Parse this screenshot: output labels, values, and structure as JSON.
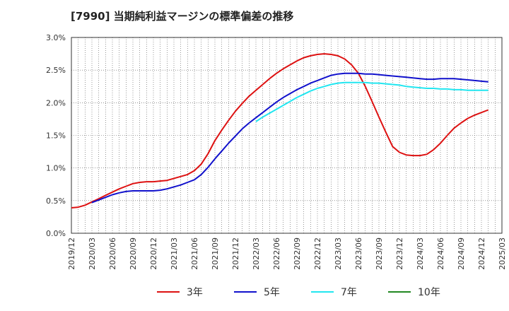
{
  "title": "[7990]  当期純利益マージンの標準偏差の推移",
  "chart_data": {
    "type": "line",
    "title": "[7990]  当期純利益マージンの標準偏差の推移",
    "xlabel": "",
    "ylabel": "",
    "ylim": [
      0,
      3.0
    ],
    "y_unit": "%",
    "y_ticks": [
      "0.0%",
      "0.5%",
      "1.0%",
      "1.5%",
      "2.0%",
      "2.5%",
      "3.0%"
    ],
    "x_ticks": [
      "2019/12",
      "2020/03",
      "2020/06",
      "2020/09",
      "2020/12",
      "2021/03",
      "2021/06",
      "2021/09",
      "2021/12",
      "2022/03",
      "2022/06",
      "2022/09",
      "2022/12",
      "2023/03",
      "2023/06",
      "2023/09",
      "2023/12",
      "2024/03",
      "2024/06",
      "2024/09",
      "2024/12",
      "2025/03"
    ],
    "grid": true,
    "legend_position": "bottom",
    "series": [
      {
        "name": "3年",
        "color": "#dd1111",
        "points": [
          [
            "2019/12",
            0.39
          ],
          [
            "2020/01",
            0.4
          ],
          [
            "2020/02",
            0.43
          ],
          [
            "2020/03",
            0.48
          ],
          [
            "2020/04",
            0.53
          ],
          [
            "2020/05",
            0.58
          ],
          [
            "2020/06",
            0.63
          ],
          [
            "2020/07",
            0.68
          ],
          [
            "2020/08",
            0.72
          ],
          [
            "2020/09",
            0.76
          ],
          [
            "2020/10",
            0.78
          ],
          [
            "2020/11",
            0.79
          ],
          [
            "2020/12",
            0.79
          ],
          [
            "2021/01",
            0.8
          ],
          [
            "2021/02",
            0.81
          ],
          [
            "2021/03",
            0.84
          ],
          [
            "2021/04",
            0.87
          ],
          [
            "2021/05",
            0.9
          ],
          [
            "2021/06",
            0.96
          ],
          [
            "2021/07",
            1.06
          ],
          [
            "2021/08",
            1.22
          ],
          [
            "2021/09",
            1.42
          ],
          [
            "2021/10",
            1.58
          ],
          [
            "2021/11",
            1.73
          ],
          [
            "2021/12",
            1.87
          ],
          [
            "2022/01",
            1.99
          ],
          [
            "2022/02",
            2.1
          ],
          [
            "2022/03",
            2.19
          ],
          [
            "2022/04",
            2.28
          ],
          [
            "2022/05",
            2.37
          ],
          [
            "2022/06",
            2.45
          ],
          [
            "2022/07",
            2.52
          ],
          [
            "2022/08",
            2.58
          ],
          [
            "2022/09",
            2.64
          ],
          [
            "2022/10",
            2.69
          ],
          [
            "2022/11",
            2.72
          ],
          [
            "2022/12",
            2.74
          ],
          [
            "2023/01",
            2.75
          ],
          [
            "2023/02",
            2.74
          ],
          [
            "2023/03",
            2.72
          ],
          [
            "2023/04",
            2.67
          ],
          [
            "2023/05",
            2.58
          ],
          [
            "2023/06",
            2.45
          ],
          [
            "2023/07",
            2.25
          ],
          [
            "2023/08",
            2.02
          ],
          [
            "2023/09",
            1.78
          ],
          [
            "2023/10",
            1.55
          ],
          [
            "2023/11",
            1.33
          ],
          [
            "2023/12",
            1.24
          ],
          [
            "2024/01",
            1.2
          ],
          [
            "2024/02",
            1.19
          ],
          [
            "2024/03",
            1.19
          ],
          [
            "2024/04",
            1.21
          ],
          [
            "2024/05",
            1.28
          ],
          [
            "2024/06",
            1.38
          ],
          [
            "2024/07",
            1.5
          ],
          [
            "2024/08",
            1.61
          ],
          [
            "2024/09",
            1.69
          ],
          [
            "2024/10",
            1.76
          ],
          [
            "2024/11",
            1.81
          ],
          [
            "2024/12",
            1.85
          ],
          [
            "2025/01",
            1.89
          ]
        ]
      },
      {
        "name": "5年",
        "color": "#1111cc",
        "points": [
          [
            "2020/03",
            0.47
          ],
          [
            "2020/04",
            0.51
          ],
          [
            "2020/05",
            0.55
          ],
          [
            "2020/06",
            0.59
          ],
          [
            "2020/07",
            0.62
          ],
          [
            "2020/08",
            0.64
          ],
          [
            "2020/09",
            0.65
          ],
          [
            "2020/10",
            0.65
          ],
          [
            "2020/11",
            0.65
          ],
          [
            "2020/12",
            0.65
          ],
          [
            "2021/01",
            0.66
          ],
          [
            "2021/02",
            0.68
          ],
          [
            "2021/03",
            0.71
          ],
          [
            "2021/04",
            0.74
          ],
          [
            "2021/05",
            0.78
          ],
          [
            "2021/06",
            0.82
          ],
          [
            "2021/07",
            0.9
          ],
          [
            "2021/08",
            1.01
          ],
          [
            "2021/09",
            1.14
          ],
          [
            "2021/10",
            1.26
          ],
          [
            "2021/11",
            1.38
          ],
          [
            "2021/12",
            1.49
          ],
          [
            "2022/01",
            1.6
          ],
          [
            "2022/02",
            1.69
          ],
          [
            "2022/03",
            1.77
          ],
          [
            "2022/04",
            1.85
          ],
          [
            "2022/05",
            1.93
          ],
          [
            "2022/06",
            2.01
          ],
          [
            "2022/07",
            2.08
          ],
          [
            "2022/08",
            2.14
          ],
          [
            "2022/09",
            2.2
          ],
          [
            "2022/10",
            2.25
          ],
          [
            "2022/11",
            2.3
          ],
          [
            "2022/12",
            2.34
          ],
          [
            "2023/01",
            2.38
          ],
          [
            "2023/02",
            2.42
          ],
          [
            "2023/03",
            2.44
          ],
          [
            "2023/04",
            2.45
          ],
          [
            "2023/05",
            2.45
          ],
          [
            "2023/06",
            2.45
          ],
          [
            "2023/07",
            2.44
          ],
          [
            "2023/08",
            2.44
          ],
          [
            "2023/09",
            2.43
          ],
          [
            "2023/10",
            2.42
          ],
          [
            "2023/11",
            2.41
          ],
          [
            "2023/12",
            2.4
          ],
          [
            "2024/01",
            2.39
          ],
          [
            "2024/02",
            2.38
          ],
          [
            "2024/03",
            2.37
          ],
          [
            "2024/04",
            2.36
          ],
          [
            "2024/05",
            2.36
          ],
          [
            "2024/06",
            2.37
          ],
          [
            "2024/07",
            2.37
          ],
          [
            "2024/08",
            2.37
          ],
          [
            "2024/09",
            2.36
          ],
          [
            "2024/10",
            2.35
          ],
          [
            "2024/11",
            2.34
          ],
          [
            "2024/12",
            2.33
          ],
          [
            "2025/01",
            2.32
          ]
        ]
      },
      {
        "name": "7年",
        "color": "#22e6f0",
        "points": [
          [
            "2022/03",
            1.71
          ],
          [
            "2022/04",
            1.78
          ],
          [
            "2022/05",
            1.84
          ],
          [
            "2022/06",
            1.9
          ],
          [
            "2022/07",
            1.96
          ],
          [
            "2022/08",
            2.02
          ],
          [
            "2022/09",
            2.08
          ],
          [
            "2022/10",
            2.13
          ],
          [
            "2022/11",
            2.18
          ],
          [
            "2022/12",
            2.22
          ],
          [
            "2023/01",
            2.25
          ],
          [
            "2023/02",
            2.28
          ],
          [
            "2023/03",
            2.3
          ],
          [
            "2023/04",
            2.31
          ],
          [
            "2023/05",
            2.31
          ],
          [
            "2023/06",
            2.31
          ],
          [
            "2023/07",
            2.31
          ],
          [
            "2023/08",
            2.3
          ],
          [
            "2023/09",
            2.3
          ],
          [
            "2023/10",
            2.29
          ],
          [
            "2023/11",
            2.28
          ],
          [
            "2023/12",
            2.27
          ],
          [
            "2024/01",
            2.25
          ],
          [
            "2024/02",
            2.24
          ],
          [
            "2024/03",
            2.23
          ],
          [
            "2024/04",
            2.22
          ],
          [
            "2024/05",
            2.22
          ],
          [
            "2024/06",
            2.21
          ],
          [
            "2024/07",
            2.21
          ],
          [
            "2024/08",
            2.2
          ],
          [
            "2024/09",
            2.2
          ],
          [
            "2024/10",
            2.19
          ],
          [
            "2024/11",
            2.19
          ],
          [
            "2024/12",
            2.19
          ],
          [
            "2025/01",
            2.19
          ]
        ]
      },
      {
        "name": "10年",
        "color": "#228822",
        "points": []
      }
    ]
  }
}
